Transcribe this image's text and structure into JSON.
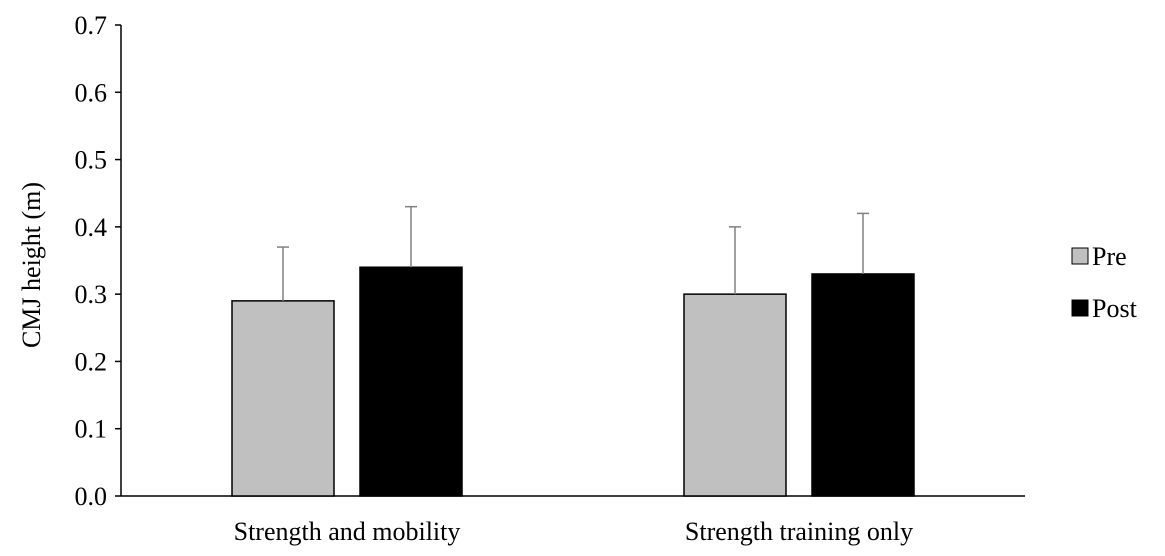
{
  "chart_data": {
    "type": "bar",
    "categories": [
      "Strength and mobility",
      "Strength training only"
    ],
    "series": [
      {
        "name": "Pre",
        "color": "#c0c0c0",
        "values": [
          0.29,
          0.3
        ],
        "error": [
          0.08,
          0.1
        ]
      },
      {
        "name": "Post",
        "color": "#000000",
        "values": [
          0.34,
          0.33
        ],
        "error": [
          0.09,
          0.09
        ]
      }
    ],
    "ylabel": "CMJ height (m)",
    "ylim": [
      0,
      0.7
    ],
    "yticks": [
      "0.0",
      "0.1",
      "0.2",
      "0.3",
      "0.4",
      "0.5",
      "0.6",
      "0.7"
    ],
    "grid": false,
    "legend": "right"
  }
}
